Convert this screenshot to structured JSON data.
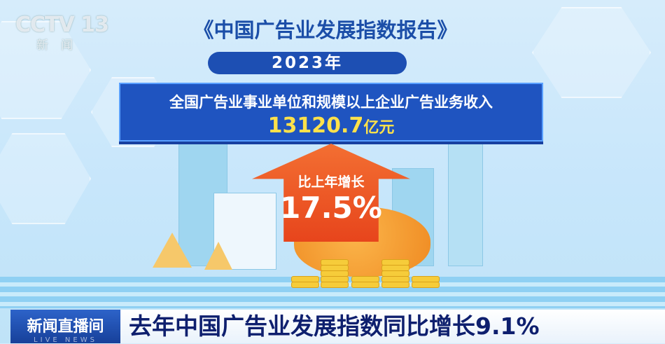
{
  "channel_logo": {
    "text": "CCTV 13",
    "subtitle": "新闻"
  },
  "report_title": "《中国广告业发展指数报告》",
  "year_badge": "2023年",
  "revenue": {
    "label": "全国广告业事业单位和规模以上企业广告业务收入",
    "value": "13120.7",
    "unit": "亿元"
  },
  "growth": {
    "label": "比上年增长",
    "value": "17.5%"
  },
  "lower_third": {
    "program": "新闻直播间",
    "program_sub": "LIVE NEWS",
    "headline": "去年中国广告业发展指数同比增长9.1%"
  },
  "colors": {
    "title": "#1b4ea8",
    "box": "#1f54c0",
    "value": "#ffe14a",
    "arrow": "#e7451c",
    "headline": "#0e1f6e"
  }
}
